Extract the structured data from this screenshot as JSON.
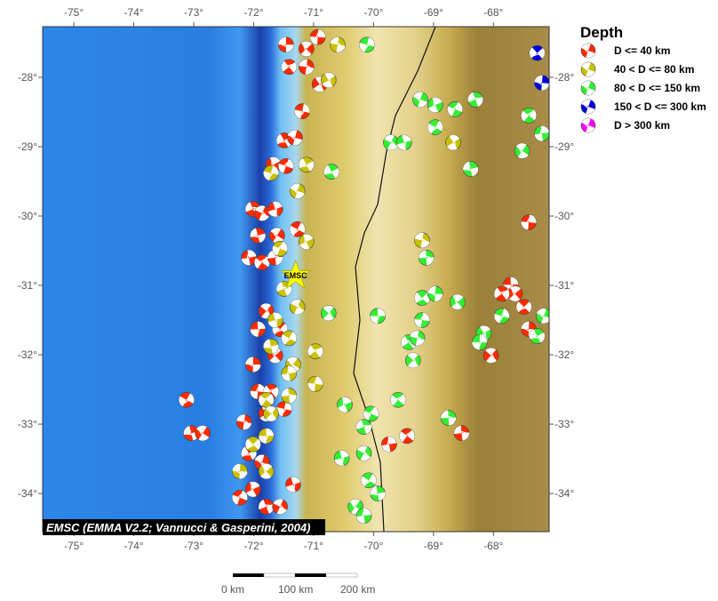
{
  "map": {
    "lon_range": [
      -75.52,
      -67.07
    ],
    "lat_range": [
      -34.55,
      -27.27
    ],
    "lon_ticks": [
      -75,
      -74,
      -73,
      -72,
      -71,
      -70,
      -69,
      -68
    ],
    "lat_ticks": [
      -28,
      -29,
      -30,
      -31,
      -32,
      -33,
      -34
    ],
    "lon_tick_labels": [
      "-75°",
      "-74°",
      "-73°",
      "-72°",
      "-71°",
      "-70°",
      "-69°",
      "-68°"
    ],
    "lat_tick_labels": [
      "-28°",
      "-29°",
      "-30°",
      "-31°",
      "-32°",
      "-33°",
      "-34°"
    ],
    "credit": "EMSC (EMMA V2.2; Vannucci & Gasperini, 2004)",
    "star": {
      "label": "EMSC",
      "lon": -71.3,
      "lat": -30.86,
      "color": "#ffff00"
    }
  },
  "legend": {
    "title": "Depth",
    "items": [
      {
        "label": "D <= 40 km",
        "color": "#ff2a00"
      },
      {
        "label": "40 < D <= 80 km",
        "color": "#c8c000"
      },
      {
        "label": "80 < D <= 150 km",
        "color": "#33ee33"
      },
      {
        "label": "150 < D <= 300 km",
        "color": "#0000dd"
      },
      {
        "label": "D > 300 km",
        "color": "#ff00ff"
      }
    ]
  },
  "scale_bar": {
    "labels": [
      "0 km",
      "100 km",
      "200 km"
    ]
  },
  "events": [
    [
      -71.46,
      -27.53,
      0
    ],
    [
      -71.12,
      -27.59,
      0
    ],
    [
      -70.93,
      -27.42,
      0
    ],
    [
      -71.41,
      -27.85,
      0
    ],
    [
      -71.12,
      -27.85,
      0
    ],
    [
      -70.9,
      -28.1,
      0
    ],
    [
      -71.19,
      -28.49,
      0
    ],
    [
      -71.49,
      -28.91,
      0
    ],
    [
      -71.31,
      -28.87,
      0
    ],
    [
      -71.67,
      -29.26,
      0
    ],
    [
      -71.46,
      -29.28,
      0
    ],
    [
      -72.01,
      -29.9,
      0
    ],
    [
      -71.86,
      -29.96,
      0
    ],
    [
      -71.64,
      -29.9,
      0
    ],
    [
      -71.27,
      -30.19,
      0
    ],
    [
      -71.93,
      -30.28,
      0
    ],
    [
      -71.61,
      -30.28,
      0
    ],
    [
      -72.08,
      -30.6,
      0
    ],
    [
      -71.86,
      -30.67,
      0
    ],
    [
      -71.64,
      -30.6,
      0
    ],
    [
      -71.79,
      -31.37,
      0
    ],
    [
      -71.93,
      -31.63,
      0
    ],
    [
      -71.56,
      -31.63,
      0
    ],
    [
      -72.01,
      -32.14,
      0
    ],
    [
      -71.64,
      -32.01,
      0
    ],
    [
      -71.93,
      -32.53,
      0
    ],
    [
      -71.71,
      -32.53,
      0
    ],
    [
      -72.16,
      -32.97,
      0
    ],
    [
      -71.79,
      -32.85,
      0
    ],
    [
      -71.49,
      -32.78,
      0
    ],
    [
      -72.08,
      -33.42,
      0
    ],
    [
      -71.86,
      -33.55,
      0
    ],
    [
      -72.01,
      -33.94,
      0
    ],
    [
      -72.23,
      -34.06,
      0
    ],
    [
      -71.79,
      -34.19,
      0
    ],
    [
      -71.56,
      -34.19,
      0
    ],
    [
      -71.34,
      -33.87,
      0
    ],
    [
      -73.12,
      -32.65,
      0
    ],
    [
      -73.04,
      -33.13,
      0
    ],
    [
      -72.85,
      -33.13,
      0
    ],
    [
      -69.74,
      -33.29,
      0
    ],
    [
      -69.44,
      -33.17,
      0
    ],
    [
      -68.53,
      -33.13,
      0
    ],
    [
      -68.04,
      -32.01,
      0
    ],
    [
      -67.71,
      -30.99,
      0
    ],
    [
      -67.49,
      -31.31,
      0
    ],
    [
      -67.41,
      -31.63,
      0
    ],
    [
      -67.64,
      -31.12,
      0
    ],
    [
      -67.41,
      -30.09,
      0
    ],
    [
      -67.86,
      -31.12,
      0
    ],
    [
      -70.6,
      -27.53,
      1
    ],
    [
      -70.75,
      -28.04,
      1
    ],
    [
      -71.71,
      -29.38,
      1
    ],
    [
      -71.12,
      -29.26,
      1
    ],
    [
      -71.27,
      -29.64,
      1
    ],
    [
      -71.12,
      -30.37,
      1
    ],
    [
      -71.56,
      -30.47,
      1
    ],
    [
      -71.49,
      -31.05,
      1
    ],
    [
      -71.27,
      -31.31,
      1
    ],
    [
      -71.64,
      -31.5,
      1
    ],
    [
      -71.41,
      -31.76,
      1
    ],
    [
      -71.71,
      -31.88,
      1
    ],
    [
      -71.34,
      -32.14,
      1
    ],
    [
      -71.41,
      -32.27,
      1
    ],
    [
      -71.79,
      -32.65,
      1
    ],
    [
      -71.41,
      -32.59,
      1
    ],
    [
      -71.71,
      -32.85,
      1
    ],
    [
      -71.79,
      -33.17,
      1
    ],
    [
      -72.01,
      -33.29,
      1
    ],
    [
      -72.23,
      -33.68,
      1
    ],
    [
      -71.79,
      -33.68,
      1
    ],
    [
      -70.97,
      -32.42,
      1
    ],
    [
      -70.97,
      -31.95,
      1
    ],
    [
      -69.19,
      -30.35,
      1
    ],
    [
      -68.67,
      -28.94,
      1
    ],
    [
      -70.11,
      -27.53,
      2
    ],
    [
      -70.7,
      -29.36,
      2
    ],
    [
      -69.22,
      -28.32,
      2
    ],
    [
      -68.97,
      -28.4,
      2
    ],
    [
      -68.64,
      -28.46,
      2
    ],
    [
      -68.3,
      -28.32,
      2
    ],
    [
      -69.71,
      -28.94,
      2
    ],
    [
      -69.49,
      -28.94,
      2
    ],
    [
      -68.97,
      -28.72,
      2
    ],
    [
      -68.38,
      -29.32,
      2
    ],
    [
      -67.52,
      -29.06,
      2
    ],
    [
      -67.19,
      -28.81,
      2
    ],
    [
      -67.41,
      -28.55,
      2
    ],
    [
      -69.12,
      -30.6,
      2
    ],
    [
      -70.75,
      -31.4,
      2
    ],
    [
      -69.93,
      -31.44,
      2
    ],
    [
      -69.19,
      -31.18,
      2
    ],
    [
      -68.97,
      -31.12,
      2
    ],
    [
      -68.6,
      -31.24,
      2
    ],
    [
      -69.19,
      -31.5,
      2
    ],
    [
      -69.41,
      -31.82,
      2
    ],
    [
      -69.27,
      -31.76,
      2
    ],
    [
      -68.16,
      -31.69,
      2
    ],
    [
      -67.86,
      -31.44,
      2
    ],
    [
      -67.27,
      -31.73,
      2
    ],
    [
      -67.16,
      -31.44,
      2
    ],
    [
      -70.48,
      -32.72,
      2
    ],
    [
      -70.04,
      -32.85,
      2
    ],
    [
      -70.16,
      -33.04,
      2
    ],
    [
      -70.16,
      -33.42,
      2
    ],
    [
      -70.53,
      -33.49,
      2
    ],
    [
      -70.08,
      -33.81,
      2
    ],
    [
      -69.93,
      -34.0,
      2
    ],
    [
      -70.3,
      -34.19,
      2
    ],
    [
      -70.16,
      -34.32,
      2
    ],
    [
      -69.59,
      -32.65,
      2
    ],
    [
      -68.75,
      -32.91,
      2
    ],
    [
      -69.34,
      -32.08,
      2
    ],
    [
      -68.23,
      -31.82,
      2
    ],
    [
      -67.27,
      -27.65,
      3
    ],
    [
      -67.19,
      -28.08,
      3
    ]
  ]
}
